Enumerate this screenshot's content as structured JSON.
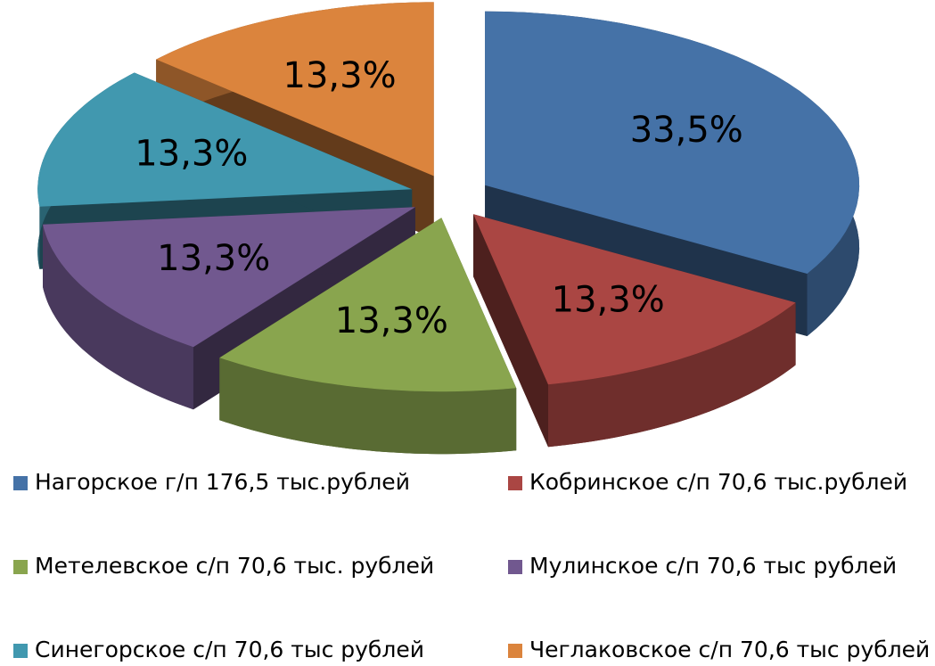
{
  "chart_data": {
    "type": "pie",
    "categories": [
      "Нагорское г/п 176,5 тыс.рублей",
      "Кобринское с/п 70,6 тыс.рублей",
      "Метелевское с/п 70,6 тыс. рублей",
      "Мулинское с/п 70,6 тыс рублей",
      "Синегорское с/п 70,6 тыс рублей",
      "Чеглаковское с/п 70,6 тыс рублей"
    ],
    "values": [
      33.5,
      13.3,
      13.3,
      13.3,
      13.3,
      13.3
    ],
    "value_labels": [
      "33,5%",
      "13,3%",
      "13,3%",
      "13,3%",
      "13,3%",
      "13,3%"
    ],
    "colors": [
      "#4572a7",
      "#aa4643",
      "#89a54e",
      "#71588f",
      "#4198af",
      "#db843d"
    ],
    "legend": "bottom"
  }
}
